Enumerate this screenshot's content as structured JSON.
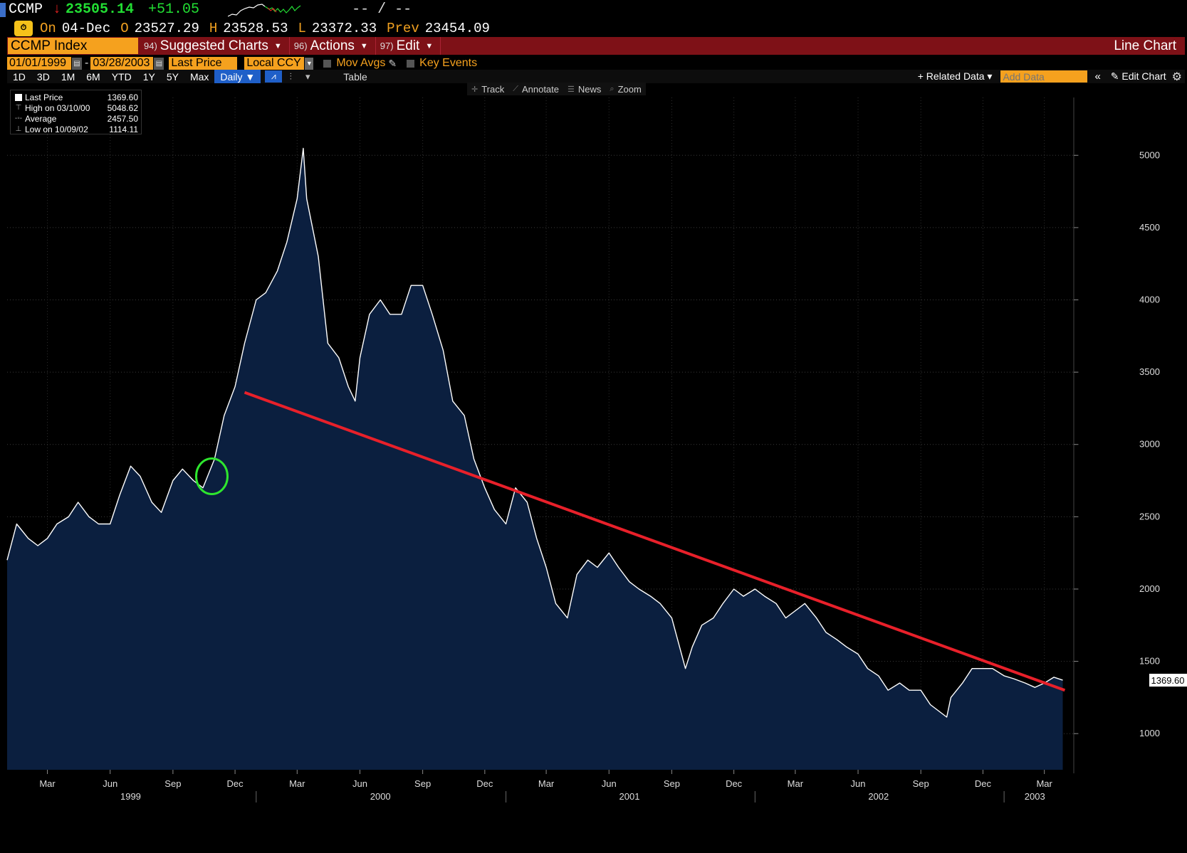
{
  "quote": {
    "ticker": "CCMP",
    "last": "23505.14",
    "change": "+51.05",
    "bid_ask": "-- / --",
    "on_label": "On",
    "date": "04-Dec",
    "open_label": "O",
    "open": "23527.29",
    "high_label": "H",
    "high": "23528.53",
    "low_label": "L",
    "low": "23372.33",
    "prev_label": "Prev",
    "prev": "23454.09"
  },
  "toolbar": {
    "title": "CCMP Index",
    "items": [
      {
        "num": "94)",
        "label": "Suggested Charts"
      },
      {
        "num": "96)",
        "label": "Actions"
      },
      {
        "num": "97)",
        "label": "Edit"
      }
    ],
    "chart_type": "Line Chart"
  },
  "controls": {
    "start_date": "01/01/1999",
    "end_date": "03/28/2003",
    "field": "Last Price",
    "currency": "Local CCY",
    "mov_avgs": "Mov Avgs",
    "key_events": "Key Events"
  },
  "periods": [
    "1D",
    "3D",
    "1M",
    "6M",
    "YTD",
    "1Y",
    "5Y",
    "Max"
  ],
  "frequency": "Daily",
  "table_tab": "Table",
  "related_data": "Related Data",
  "add_data_placeholder": "Add Data",
  "edit_chart": "Edit Chart",
  "chart_tools": [
    "Track",
    "Annotate",
    "News",
    "Zoom"
  ],
  "legend": [
    {
      "label": "Last Price",
      "value": "1369.60"
    },
    {
      "label": "High on 03/10/00",
      "value": "5048.62"
    },
    {
      "label": "Average",
      "value": "2457.50"
    },
    {
      "label": "Low on 10/09/02",
      "value": "1114.11"
    }
  ],
  "colors": {
    "background": "#000000",
    "area_fill": "#0b1f3f",
    "price_line": "#ffffff",
    "trend_line": "#e8202a",
    "highlight_circle": "#2ee62e",
    "accent": "#f5a11e",
    "toolbar": "#7e1117"
  },
  "chart_data": {
    "type": "area",
    "series": [
      {
        "name": "Last Price",
        "x": [
          "1999-01-01",
          "1999-01-15",
          "1999-02-01",
          "1999-02-15",
          "1999-03-01",
          "1999-03-15",
          "1999-04-01",
          "1999-04-15",
          "1999-05-01",
          "1999-05-15",
          "1999-06-01",
          "1999-06-15",
          "1999-07-01",
          "1999-07-15",
          "1999-08-01",
          "1999-08-15",
          "1999-09-01",
          "1999-09-15",
          "1999-10-01",
          "1999-10-15",
          "1999-11-01",
          "1999-11-15",
          "1999-12-01",
          "1999-12-15",
          "2000-01-01",
          "2000-01-15",
          "2000-02-01",
          "2000-02-15",
          "2000-03-01",
          "2000-03-10",
          "2000-03-15",
          "2000-04-01",
          "2000-04-15",
          "2000-05-01",
          "2000-05-15",
          "2000-05-25",
          "2000-06-01",
          "2000-06-15",
          "2000-07-01",
          "2000-07-15",
          "2000-08-01",
          "2000-08-15",
          "2000-09-01",
          "2000-09-15",
          "2000-10-01",
          "2000-10-15",
          "2000-11-01",
          "2000-11-15",
          "2000-12-01",
          "2000-12-15",
          "2001-01-01",
          "2001-01-15",
          "2001-02-01",
          "2001-02-15",
          "2001-03-01",
          "2001-03-15",
          "2001-04-01",
          "2001-04-15",
          "2001-05-01",
          "2001-05-15",
          "2001-06-01",
          "2001-06-15",
          "2001-07-01",
          "2001-07-15",
          "2001-08-01",
          "2001-08-15",
          "2001-09-01",
          "2001-09-21",
          "2001-10-01",
          "2001-10-15",
          "2001-11-01",
          "2001-11-15",
          "2001-12-01",
          "2001-12-15",
          "2002-01-01",
          "2002-01-15",
          "2002-02-01",
          "2002-02-15",
          "2002-03-01",
          "2002-03-15",
          "2002-04-01",
          "2002-04-15",
          "2002-05-01",
          "2002-05-15",
          "2002-06-01",
          "2002-06-15",
          "2002-07-01",
          "2002-07-15",
          "2002-08-01",
          "2002-08-15",
          "2002-09-01",
          "2002-09-15",
          "2002-10-09",
          "2002-10-15",
          "2002-11-01",
          "2002-11-15",
          "2002-12-01",
          "2002-12-15",
          "2003-01-01",
          "2003-01-15",
          "2003-02-01",
          "2003-02-15",
          "2003-03-01",
          "2003-03-15",
          "2003-03-28"
        ],
        "values": [
          2200,
          2450,
          2350,
          2300,
          2350,
          2450,
          2500,
          2600,
          2500,
          2450,
          2450,
          2650,
          2850,
          2780,
          2600,
          2530,
          2750,
          2830,
          2750,
          2700,
          2900,
          3200,
          3400,
          3700,
          4000,
          4050,
          4200,
          4400,
          4700,
          5048,
          4700,
          4300,
          3700,
          3600,
          3400,
          3300,
          3600,
          3900,
          4000,
          3900,
          3900,
          4100,
          4100,
          3900,
          3650,
          3300,
          3200,
          2900,
          2700,
          2550,
          2450,
          2700,
          2600,
          2350,
          2150,
          1900,
          1800,
          2100,
          2200,
          2150,
          2250,
          2150,
          2050,
          2000,
          1950,
          1900,
          1800,
          1450,
          1600,
          1750,
          1800,
          1900,
          2000,
          1950,
          2000,
          1950,
          1900,
          1800,
          1850,
          1900,
          1800,
          1700,
          1650,
          1600,
          1550,
          1450,
          1400,
          1300,
          1350,
          1300,
          1300,
          1200,
          1114,
          1250,
          1350,
          1450,
          1450,
          1450,
          1400,
          1380,
          1350,
          1320,
          1350,
          1390,
          1369.6
        ]
      }
    ],
    "trendline": {
      "x": [
        "1999-12-15",
        "2003-03-31"
      ],
      "y": [
        3360,
        1300
      ]
    },
    "highlight": {
      "x": "1999-10-28",
      "y": 2780,
      "label": ""
    },
    "ylim": [
      750,
      5400
    ],
    "yticks": [
      1000,
      1500,
      2000,
      2500,
      3000,
      3500,
      4000,
      4500,
      5000
    ],
    "month_labels": [
      {
        "date": "1999-03-01",
        "label": "Mar"
      },
      {
        "date": "1999-06-01",
        "label": "Jun"
      },
      {
        "date": "1999-09-01",
        "label": "Sep"
      },
      {
        "date": "1999-12-01",
        "label": "Dec"
      },
      {
        "date": "2000-03-01",
        "label": "Mar"
      },
      {
        "date": "2000-06-01",
        "label": "Jun"
      },
      {
        "date": "2000-09-01",
        "label": "Sep"
      },
      {
        "date": "2000-12-01",
        "label": "Dec"
      },
      {
        "date": "2001-03-01",
        "label": "Mar"
      },
      {
        "date": "2001-06-01",
        "label": "Jun"
      },
      {
        "date": "2001-09-01",
        "label": "Sep"
      },
      {
        "date": "2001-12-01",
        "label": "Dec"
      },
      {
        "date": "2002-03-01",
        "label": "Mar"
      },
      {
        "date": "2002-06-01",
        "label": "Jun"
      },
      {
        "date": "2002-09-01",
        "label": "Sep"
      },
      {
        "date": "2002-12-01",
        "label": "Dec"
      },
      {
        "date": "2003-03-01",
        "label": "Mar"
      }
    ],
    "year_labels": [
      {
        "date": "1999-07-01",
        "label": "1999"
      },
      {
        "date": "2000-07-01",
        "label": "2000"
      },
      {
        "date": "2001-07-01",
        "label": "2001"
      },
      {
        "date": "2002-07-01",
        "label": "2002"
      },
      {
        "date": "2003-02-15",
        "label": "2003"
      }
    ],
    "last_price_label": "1369.60",
    "grid": true,
    "legend_position": "top-left"
  }
}
